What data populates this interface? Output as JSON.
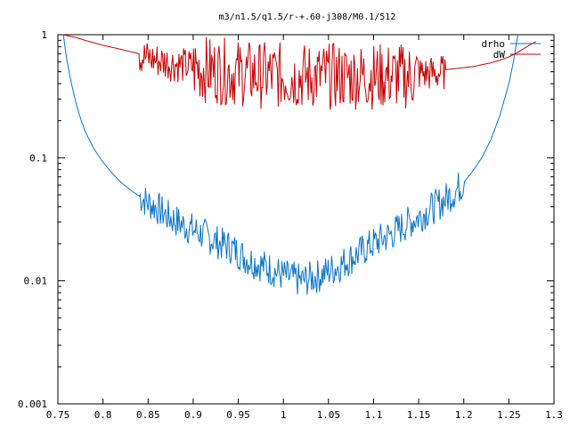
{
  "chart_data": {
    "type": "line",
    "title": "m3/n1.5/q1.5/r-+.60-j308/M0.1/512",
    "xlabel": "",
    "ylabel": "",
    "xlim": [
      0.75,
      1.3
    ],
    "ylim": [
      0.001,
      1
    ],
    "yscale": "log",
    "grid": false,
    "legend_position": "top-right",
    "x_ticks": [
      {
        "v": 0.75,
        "label": "0.75"
      },
      {
        "v": 0.8,
        "label": "0.8"
      },
      {
        "v": 0.85,
        "label": "0.85"
      },
      {
        "v": 0.9,
        "label": "0.9"
      },
      {
        "v": 0.95,
        "label": "0.95"
      },
      {
        "v": 1.0,
        "label": "1"
      },
      {
        "v": 1.05,
        "label": "1.05"
      },
      {
        "v": 1.1,
        "label": "1.1"
      },
      {
        "v": 1.15,
        "label": "1.15"
      },
      {
        "v": 1.2,
        "label": "1.2"
      },
      {
        "v": 1.25,
        "label": "1.25"
      },
      {
        "v": 1.3,
        "label": "1.3"
      }
    ],
    "y_ticks": [
      {
        "v": 1,
        "label": "1"
      },
      {
        "v": 0.1,
        "label": "0.1"
      },
      {
        "v": 0.01,
        "label": "0.01"
      },
      {
        "v": 0.001,
        "label": "0.001"
      }
    ],
    "series": [
      {
        "name": "drho",
        "color": "#0a74c8",
        "points": [
          [
            0.756,
            1.0
          ],
          [
            0.76,
            0.62
          ],
          [
            0.765,
            0.4
          ],
          [
            0.77,
            0.28
          ],
          [
            0.775,
            0.21
          ],
          [
            0.78,
            0.165
          ],
          [
            0.79,
            0.118
          ],
          [
            0.8,
            0.092
          ],
          [
            0.81,
            0.075
          ],
          [
            0.82,
            0.063
          ],
          [
            0.83,
            0.055
          ],
          [
            0.84,
            0.049
          ],
          [
            0.85,
            0.043
          ],
          [
            0.86,
            0.039
          ],
          [
            0.87,
            0.034
          ],
          [
            0.88,
            0.031
          ],
          [
            0.89,
            0.028
          ],
          [
            0.9,
            0.026
          ],
          [
            0.91,
            0.024
          ],
          [
            0.92,
            0.022
          ],
          [
            0.93,
            0.02
          ],
          [
            0.94,
            0.019
          ],
          [
            0.95,
            0.017
          ],
          [
            0.96,
            0.015
          ],
          [
            0.97,
            0.014
          ],
          [
            0.98,
            0.013
          ],
          [
            0.99,
            0.012
          ],
          [
            1.0,
            0.011
          ],
          [
            1.01,
            0.0105
          ],
          [
            1.02,
            0.01
          ],
          [
            1.03,
            0.0105
          ],
          [
            1.04,
            0.011
          ],
          [
            1.05,
            0.012
          ],
          [
            1.06,
            0.013
          ],
          [
            1.07,
            0.0145
          ],
          [
            1.08,
            0.016
          ],
          [
            1.09,
            0.018
          ],
          [
            1.1,
            0.02
          ],
          [
            1.11,
            0.022
          ],
          [
            1.12,
            0.024
          ],
          [
            1.13,
            0.027
          ],
          [
            1.14,
            0.03
          ],
          [
            1.15,
            0.033
          ],
          [
            1.16,
            0.037
          ],
          [
            1.17,
            0.041
          ],
          [
            1.18,
            0.046
          ],
          [
            1.19,
            0.053
          ],
          [
            1.2,
            0.063
          ],
          [
            1.21,
            0.078
          ],
          [
            1.22,
            0.1
          ],
          [
            1.23,
            0.14
          ],
          [
            1.24,
            0.22
          ],
          [
            1.25,
            0.4
          ],
          [
            1.255,
            0.6
          ],
          [
            1.26,
            1.0
          ]
        ]
      },
      {
        "name": "dW",
        "color": "#c80000",
        "points": [
          [
            0.755,
            1.0
          ],
          [
            0.77,
            0.95
          ],
          [
            0.78,
            0.9
          ],
          [
            0.79,
            0.86
          ],
          [
            0.8,
            0.82
          ],
          [
            0.81,
            0.79
          ],
          [
            0.82,
            0.76
          ],
          [
            0.83,
            0.73
          ],
          [
            0.84,
            0.7
          ],
          [
            0.85,
            0.67
          ],
          [
            0.86,
            0.64
          ],
          [
            0.87,
            0.62
          ],
          [
            0.88,
            0.6
          ],
          [
            0.89,
            0.58
          ],
          [
            0.9,
            0.57
          ],
          [
            0.91,
            0.56
          ],
          [
            0.92,
            0.55
          ],
          [
            0.93,
            0.54
          ],
          [
            0.94,
            0.53
          ],
          [
            0.95,
            0.52
          ],
          [
            0.96,
            0.51
          ],
          [
            0.97,
            0.505
          ],
          [
            0.98,
            0.5
          ],
          [
            0.99,
            0.5
          ],
          [
            1.0,
            0.49
          ],
          [
            1.01,
            0.49
          ],
          [
            1.02,
            0.49
          ],
          [
            1.03,
            0.49
          ],
          [
            1.04,
            0.49
          ],
          [
            1.05,
            0.49
          ],
          [
            1.06,
            0.49
          ],
          [
            1.07,
            0.49
          ],
          [
            1.08,
            0.49
          ],
          [
            1.09,
            0.49
          ],
          [
            1.1,
            0.49
          ],
          [
            1.11,
            0.49
          ],
          [
            1.12,
            0.49
          ],
          [
            1.13,
            0.49
          ],
          [
            1.14,
            0.49
          ],
          [
            1.15,
            0.5
          ],
          [
            1.16,
            0.5
          ],
          [
            1.17,
            0.5
          ],
          [
            1.18,
            0.52
          ],
          [
            1.19,
            0.53
          ],
          [
            1.2,
            0.54
          ],
          [
            1.21,
            0.55
          ],
          [
            1.22,
            0.57
          ],
          [
            1.23,
            0.59
          ],
          [
            1.24,
            0.62
          ],
          [
            1.25,
            0.66
          ],
          [
            1.26,
            0.72
          ],
          [
            1.27,
            0.8
          ],
          [
            1.28,
            0.88
          ]
        ],
        "noise_range": [
          0.84,
          1.18
        ]
      }
    ]
  }
}
